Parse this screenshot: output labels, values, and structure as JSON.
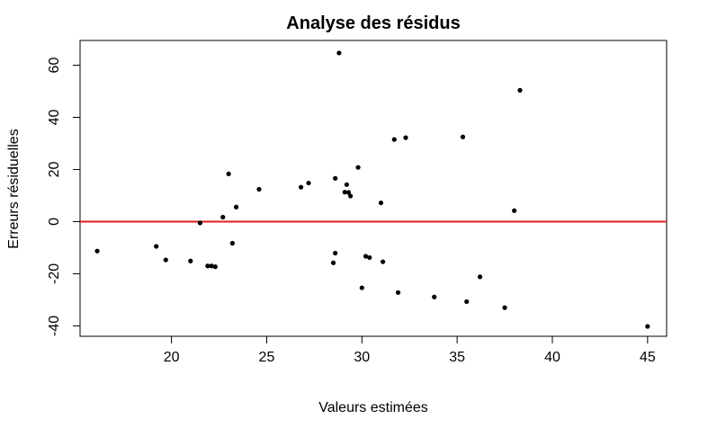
{
  "chart_data": {
    "type": "scatter",
    "title": "Analyse des résidus",
    "xlabel": "Valeurs estimées",
    "ylabel": "Erreurs résiduelles",
    "xlim": [
      15.2,
      46.0
    ],
    "ylim": [
      -44.0,
      69.5
    ],
    "x_ticks": [
      20,
      25,
      30,
      35,
      40,
      45
    ],
    "y_ticks": [
      -40,
      -20,
      0,
      20,
      40,
      60
    ],
    "reference_line": {
      "y": 0,
      "color": "#e31a1c"
    },
    "point_color": "#000000",
    "grid": false,
    "points": [
      {
        "x": 16.1,
        "y": -11.3
      },
      {
        "x": 19.2,
        "y": -9.5
      },
      {
        "x": 19.7,
        "y": -14.7
      },
      {
        "x": 21.0,
        "y": -15.1
      },
      {
        "x": 21.5,
        "y": -0.5
      },
      {
        "x": 21.9,
        "y": -17.0
      },
      {
        "x": 22.1,
        "y": -17.0
      },
      {
        "x": 22.3,
        "y": -17.3
      },
      {
        "x": 22.7,
        "y": 1.7
      },
      {
        "x": 23.0,
        "y": 18.3
      },
      {
        "x": 23.2,
        "y": -8.3
      },
      {
        "x": 23.4,
        "y": 5.6
      },
      {
        "x": 24.6,
        "y": 12.4
      },
      {
        "x": 26.8,
        "y": 13.2
      },
      {
        "x": 27.2,
        "y": 14.8
      },
      {
        "x": 28.5,
        "y": -15.8
      },
      {
        "x": 28.6,
        "y": 16.6
      },
      {
        "x": 28.6,
        "y": -12.1
      },
      {
        "x": 28.8,
        "y": 64.7
      },
      {
        "x": 29.1,
        "y": 11.3
      },
      {
        "x": 29.2,
        "y": 14.2
      },
      {
        "x": 29.3,
        "y": 11.2
      },
      {
        "x": 29.4,
        "y": 9.8
      },
      {
        "x": 29.8,
        "y": 20.8
      },
      {
        "x": 30.0,
        "y": -25.4
      },
      {
        "x": 30.2,
        "y": -13.3
      },
      {
        "x": 30.4,
        "y": -13.8
      },
      {
        "x": 31.0,
        "y": 7.2
      },
      {
        "x": 31.1,
        "y": -15.4
      },
      {
        "x": 31.7,
        "y": 31.5
      },
      {
        "x": 31.9,
        "y": -27.2
      },
      {
        "x": 32.3,
        "y": 32.2
      },
      {
        "x": 33.8,
        "y": -28.9
      },
      {
        "x": 35.3,
        "y": 32.5
      },
      {
        "x": 35.5,
        "y": -30.7
      },
      {
        "x": 36.2,
        "y": -21.2
      },
      {
        "x": 37.5,
        "y": -33.0
      },
      {
        "x": 38.0,
        "y": 4.2
      },
      {
        "x": 38.3,
        "y": 50.4
      },
      {
        "x": 45.0,
        "y": -40.2
      }
    ]
  }
}
